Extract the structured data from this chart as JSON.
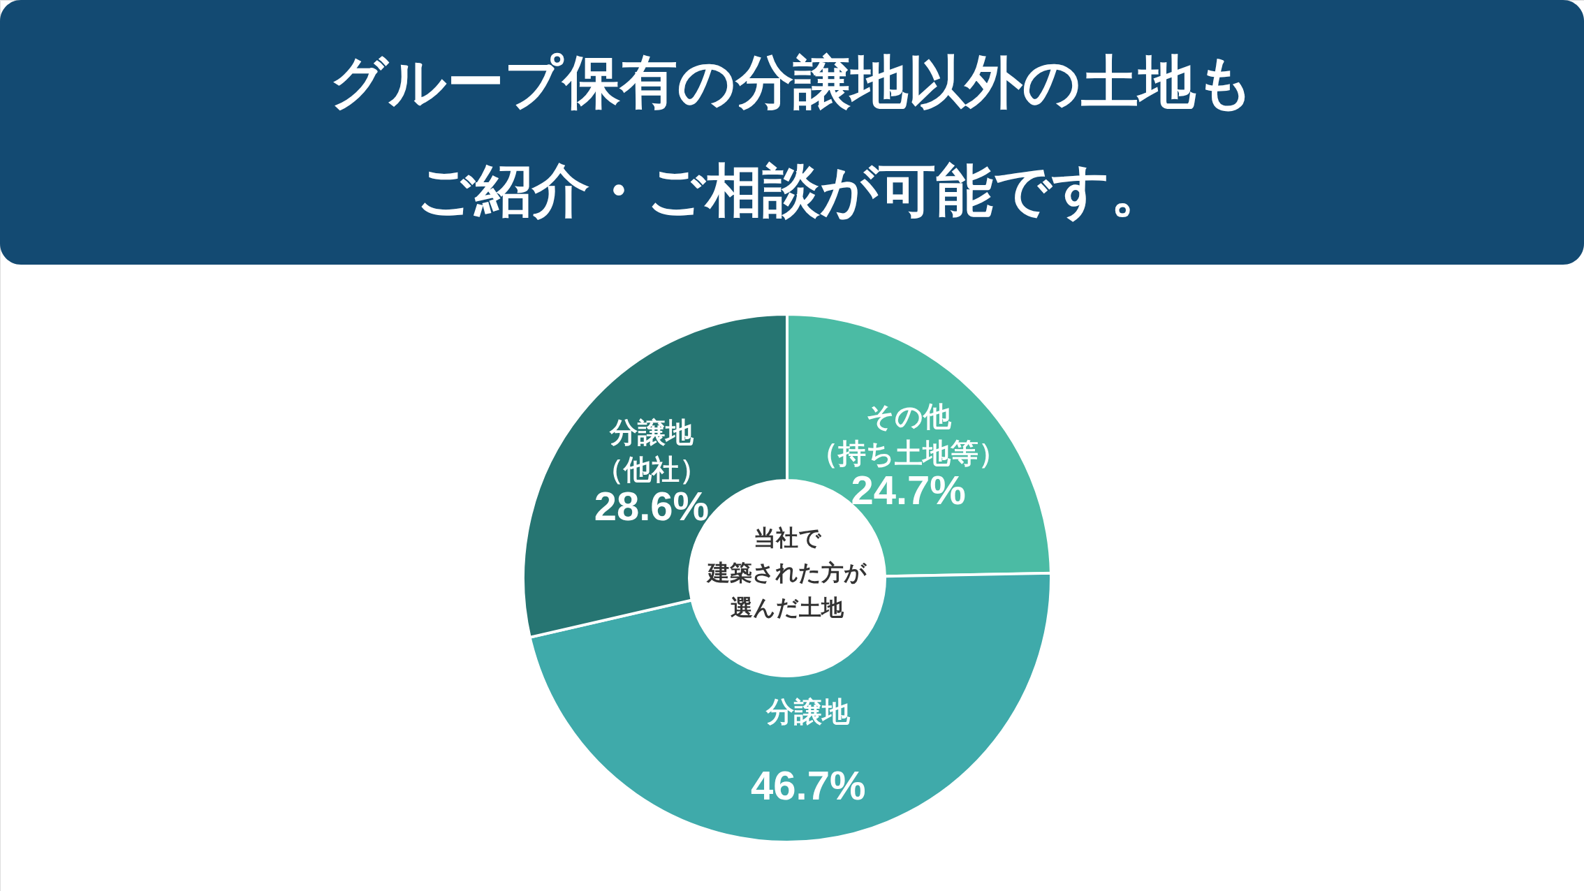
{
  "chart_data": {
    "type": "donut",
    "title": "グループ保有の分譲地以外の土地もご紹介・ご相談が可能です。",
    "categories": [
      "その他（持ち土地等）",
      "分譲地",
      "分譲地（他社）"
    ],
    "values": [
      24.7,
      46.7,
      28.6
    ],
    "colors": [
      "#4bbba4",
      "#3faaaa",
      "#267572"
    ],
    "value_labels": [
      "24.7%",
      "46.7%",
      "28.6%"
    ],
    "annotations": [
      "当社で",
      "建築された方が",
      "選んだ土地"
    ]
  }
}
